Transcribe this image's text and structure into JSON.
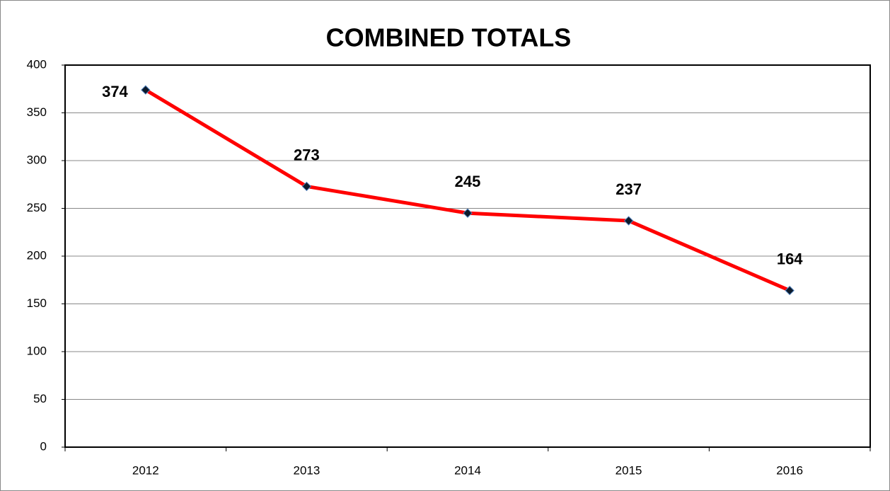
{
  "chart_data": {
    "type": "line",
    "title": "COMBINED TOTALS",
    "categories": [
      "2012",
      "2013",
      "2014",
      "2015",
      "2016"
    ],
    "series": [
      {
        "name": "COMBINED TOTALS",
        "color": "#ff0000",
        "values": [
          374,
          273,
          245,
          237,
          164
        ]
      }
    ],
    "ylim": [
      0,
      400
    ],
    "yticks": [
      0,
      50,
      100,
      150,
      200,
      250,
      300,
      350,
      400
    ],
    "grid": true
  }
}
